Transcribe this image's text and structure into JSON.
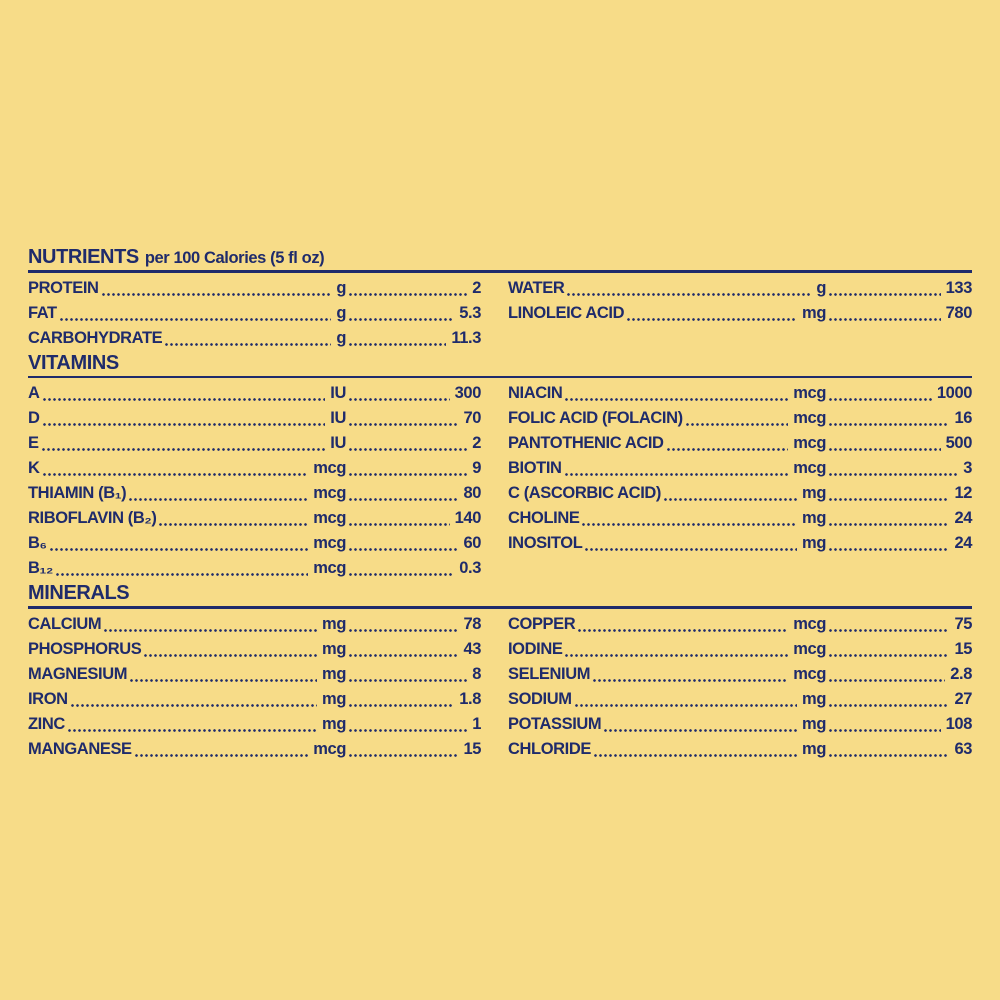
{
  "page": {
    "background_color": "#F7DC88",
    "ink_color": "#1F2B6B",
    "panel_name": "nutrient-facts-panel"
  },
  "sections": [
    {
      "id": "nutrients",
      "heading_main": "NUTRIENTS",
      "heading_sub": "per 100 Calories (5 fl oz)",
      "left": [
        {
          "label": "PROTEIN",
          "unit": "g",
          "value": "2"
        },
        {
          "label": "FAT",
          "unit": "g",
          "value": "5.3"
        },
        {
          "label": "CARBOHYDRATE",
          "unit": "g",
          "value": "11.3"
        }
      ],
      "right": [
        {
          "label": "WATER",
          "unit": "g",
          "value": "133"
        },
        {
          "label": "LINOLEIC ACID",
          "unit": "mg",
          "value": "780"
        }
      ]
    },
    {
      "id": "vitamins",
      "heading_main": "VITAMINS",
      "heading_sub": "",
      "left": [
        {
          "label": "A",
          "unit": "IU",
          "value": "300"
        },
        {
          "label": "D",
          "unit": "IU",
          "value": "70"
        },
        {
          "label": "E",
          "unit": "IU",
          "value": "2"
        },
        {
          "label": "K",
          "unit": "mcg",
          "value": "9"
        },
        {
          "label": "THIAMIN (B₁)",
          "unit": "mcg",
          "value": "80"
        },
        {
          "label": "RIBOFLAVIN (B₂)",
          "unit": "mcg",
          "value": "140"
        },
        {
          "label": "B₆",
          "unit": "mcg",
          "value": "60"
        },
        {
          "label": "B₁₂",
          "unit": "mcg",
          "value": "0.3"
        }
      ],
      "right": [
        {
          "label": "NIACIN",
          "unit": "mcg",
          "value": "1000"
        },
        {
          "label": "FOLIC ACID (FOLACIN)",
          "unit": "mcg",
          "value": "16"
        },
        {
          "label": "PANTOTHENIC ACID",
          "unit": "mcg",
          "value": "500"
        },
        {
          "label": "BIOTIN",
          "unit": "mcg",
          "value": "3"
        },
        {
          "label": "C (ASCORBIC ACID)",
          "unit": "mg",
          "value": "12"
        },
        {
          "label": "CHOLINE",
          "unit": "mg",
          "value": "24"
        },
        {
          "label": "INOSITOL",
          "unit": "mg",
          "value": "24"
        }
      ]
    },
    {
      "id": "minerals",
      "heading_main": "MINERALS",
      "heading_sub": "",
      "left": [
        {
          "label": "CALCIUM",
          "unit": "mg",
          "value": "78"
        },
        {
          "label": "PHOSPHORUS",
          "unit": "mg",
          "value": "43"
        },
        {
          "label": "MAGNESIUM",
          "unit": "mg",
          "value": "8"
        },
        {
          "label": "IRON",
          "unit": "mg",
          "value": "1.8"
        },
        {
          "label": "ZINC",
          "unit": "mg",
          "value": "1"
        },
        {
          "label": "MANGANESE",
          "unit": "mcg",
          "value": "15"
        }
      ],
      "right": [
        {
          "label": "COPPER",
          "unit": "mcg",
          "value": "75"
        },
        {
          "label": "IODINE",
          "unit": "mcg",
          "value": "15"
        },
        {
          "label": "SELENIUM",
          "unit": "mcg",
          "value": "2.8"
        },
        {
          "label": "SODIUM",
          "unit": "mg",
          "value": "27"
        },
        {
          "label": "POTASSIUM",
          "unit": "mg",
          "value": "108"
        },
        {
          "label": "CHLORIDE",
          "unit": "mg",
          "value": "63"
        }
      ]
    }
  ]
}
